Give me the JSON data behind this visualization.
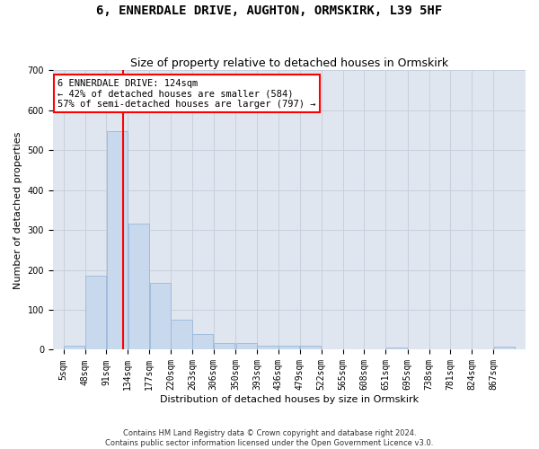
{
  "title": "6, ENNERDALE DRIVE, AUGHTON, ORMSKIRK, L39 5HF",
  "subtitle": "Size of property relative to detached houses in Ormskirk",
  "xlabel": "Distribution of detached houses by size in Ormskirk",
  "ylabel": "Number of detached properties",
  "bar_color": "#c8d9ee",
  "bar_edge_color": "#9ab8d8",
  "grid_color": "#c8d0de",
  "bg_color": "#dfe6f0",
  "property_line_x": 124,
  "property_line_color": "red",
  "annotation_line1": "6 ENNERDALE DRIVE: 124sqm",
  "annotation_line2": "← 42% of detached houses are smaller (584)",
  "annotation_line3": "57% of semi-detached houses are larger (797) →",
  "annotation_box_color": "red",
  "bin_edges": [
    5,
    48,
    91,
    134,
    177,
    220,
    263,
    306,
    350,
    393,
    436,
    479,
    522,
    565,
    608,
    651,
    695,
    738,
    781,
    824,
    867
  ],
  "bin_labels": [
    "5sqm",
    "48sqm",
    "91sqm",
    "134sqm",
    "177sqm",
    "220sqm",
    "263sqm",
    "306sqm",
    "350sqm",
    "393sqm",
    "436sqm",
    "479sqm",
    "522sqm",
    "565sqm",
    "608sqm",
    "651sqm",
    "695sqm",
    "738sqm",
    "781sqm",
    "824sqm",
    "867sqm"
  ],
  "bar_heights": [
    10,
    185,
    548,
    315,
    167,
    76,
    40,
    16,
    16,
    11,
    11,
    11,
    0,
    0,
    0,
    6,
    0,
    0,
    0,
    0,
    8
  ],
  "ylim": [
    0,
    700
  ],
  "yticks": [
    0,
    100,
    200,
    300,
    400,
    500,
    600,
    700
  ],
  "footer": "Contains HM Land Registry data © Crown copyright and database right 2024.\nContains public sector information licensed under the Open Government Licence v3.0.",
  "title_fontsize": 10,
  "subtitle_fontsize": 9,
  "tick_fontsize": 7,
  "ylabel_fontsize": 8,
  "xlabel_fontsize": 8
}
